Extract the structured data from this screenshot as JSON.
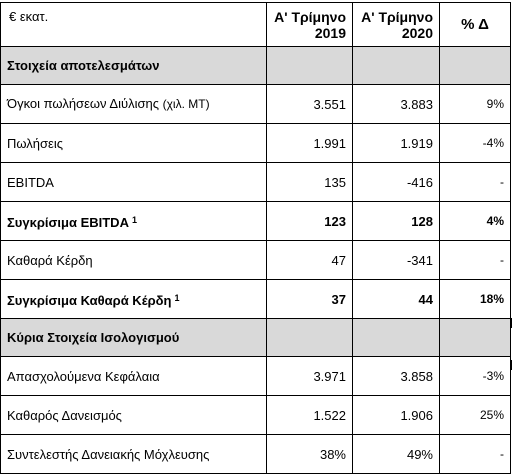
{
  "header": {
    "unit": "€ εκατ.",
    "col1_line1": "Α' Τρίμηνο",
    "col1_line2": "2019",
    "col2_line1": "Α' Τρίμηνο",
    "col2_line2": "2020",
    "col3": "% Δ"
  },
  "sections": [
    {
      "title": "Στοιχεία αποτελεσμάτων",
      "rows": [
        {
          "label": "Όγκοι πωλήσεων Διύλισης",
          "label_suffix": "(χιλ. ΜΤ)",
          "q1_2019": "3.551",
          "q1_2020": "3.883",
          "change": "9%",
          "bold": false
        },
        {
          "label": "Πωλήσεις",
          "q1_2019": "1.991",
          "q1_2020": "1.919",
          "change": "-4%",
          "bold": false
        },
        {
          "label": "EBITDA",
          "q1_2019": "135",
          "q1_2020": "-416",
          "change": "-",
          "bold": false
        },
        {
          "label": "Συγκρίσιμα EBITDA",
          "footnote": "1",
          "q1_2019": "123",
          "q1_2020": "128",
          "change": "4%",
          "bold": true
        },
        {
          "label": "Καθαρά Κέρδη",
          "q1_2019": "47",
          "q1_2020": "-341",
          "change": "-",
          "bold": false
        },
        {
          "label": "Συγκρίσιμα Καθαρά Κέρδη",
          "footnote": "1",
          "q1_2019": "37",
          "q1_2020": "44",
          "change": "18%",
          "bold": true
        }
      ]
    },
    {
      "title": "Κύρια Στοιχεία Ισολογισμού",
      "rows": [
        {
          "label": "Απασχολούμενα Κεφάλαια",
          "q1_2019": "3.971",
          "q1_2020": "3.858",
          "change": "-3%",
          "bold": false
        },
        {
          "label": "Καθαρός Δανεισμός",
          "q1_2019": "1.522",
          "q1_2020": "1.906",
          "change": "25%",
          "bold": false
        },
        {
          "label": "Συντελεστής Δανειακής Μόχλευσης",
          "q1_2019": "38%",
          "q1_2020": "49%",
          "change": "-",
          "bold": false
        }
      ]
    }
  ]
}
